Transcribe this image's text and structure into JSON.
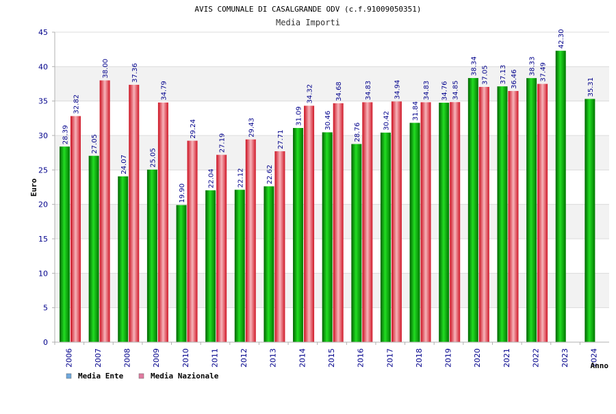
{
  "chart_data": {
    "type": "bar",
    "title": "AVIS COMUNALE DI CASALGRANDE ODV (c.f.91009050351)",
    "subtitle": "Media Importi",
    "xlabel": "Anno",
    "ylabel": "Euro",
    "ylim": [
      0,
      45
    ],
    "yticks": [
      0,
      5,
      10,
      15,
      20,
      25,
      30,
      35,
      40,
      45
    ],
    "grid": "horizontal bands",
    "legend_position": "bottom-left",
    "categories": [
      "2006",
      "2007",
      "2008",
      "2009",
      "2010",
      "2011",
      "2012",
      "2013",
      "2014",
      "2015",
      "2016",
      "2017",
      "2018",
      "2019",
      "2020",
      "2021",
      "2022",
      "2023",
      "2024"
    ],
    "series": [
      {
        "name": "Media Ente",
        "color": "#00aa00",
        "legend_color": "#6fa8dc",
        "values": [
          28.39,
          27.05,
          24.07,
          25.05,
          19.9,
          22.04,
          22.12,
          22.62,
          31.09,
          30.46,
          28.76,
          30.42,
          31.84,
          34.76,
          38.34,
          37.13,
          38.33,
          42.3,
          35.31
        ],
        "labels": [
          "28.39",
          "27.05",
          "24.07",
          "25.05",
          "19.90",
          "22.04",
          "22.12",
          "22.62",
          "31.09",
          "30.46",
          "28.76",
          "30.42",
          "31.84",
          "34.76",
          "38.34",
          "37.13",
          "38.33",
          "42.30",
          "35.31"
        ]
      },
      {
        "name": "Media Nazionale",
        "color": "#e03040",
        "legend_color": "#e07aa0",
        "values": [
          32.82,
          38.0,
          37.36,
          34.79,
          29.24,
          27.19,
          29.43,
          27.71,
          34.32,
          34.68,
          34.83,
          34.94,
          34.83,
          34.85,
          37.05,
          36.46,
          37.49,
          null,
          null
        ],
        "labels": [
          "32.82",
          "38.00",
          "37.36",
          "34.79",
          "29.24",
          "27.19",
          "29.43",
          "27.71",
          "34.32",
          "34.68",
          "34.83",
          "34.94",
          "34.83",
          "34.85",
          "37.05",
          "36.46",
          "37.49",
          null,
          null
        ]
      }
    ]
  }
}
